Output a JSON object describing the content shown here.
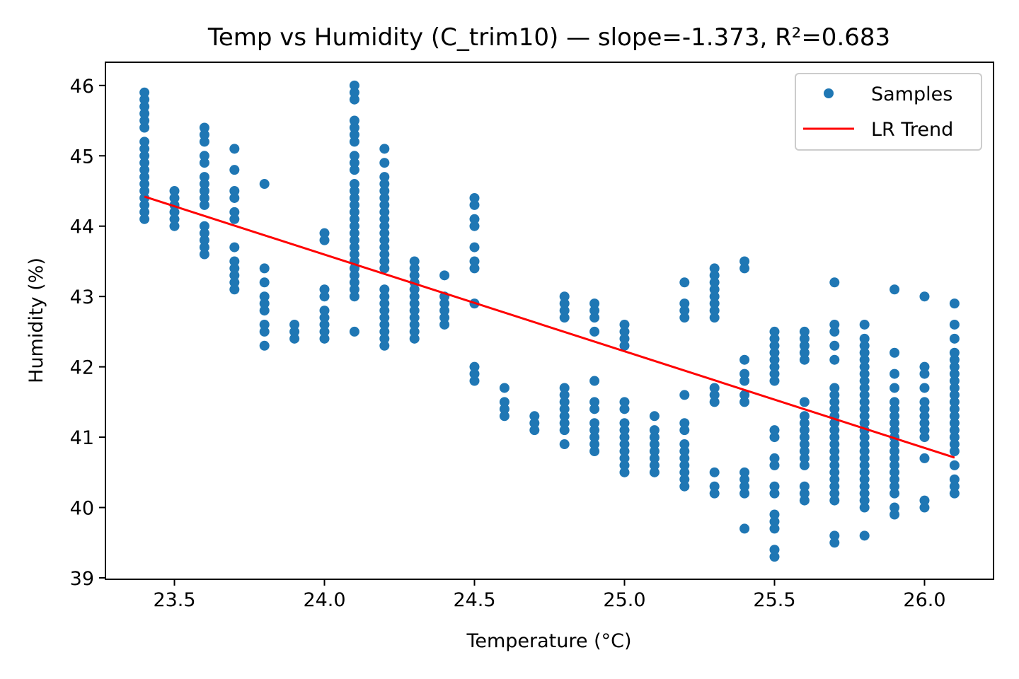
{
  "chart_data": {
    "type": "scatter",
    "title": "Temp vs Humidity (C_trim10) — slope=-1.373, R²=0.683",
    "xlabel": "Temperature (°C)",
    "ylabel": "Humidity (%)",
    "xlim": [
      23.27,
      26.23
    ],
    "ylim": [
      38.98,
      46.33
    ],
    "xticks": [
      23.5,
      24.0,
      24.5,
      25.0,
      25.5,
      26.0
    ],
    "xtick_labels": [
      "23.5",
      "24.0",
      "24.5",
      "25.0",
      "25.5",
      "26.0"
    ],
    "yticks": [
      39,
      40,
      41,
      42,
      43,
      44,
      45,
      46
    ],
    "ytick_labels": [
      "39",
      "40",
      "41",
      "42",
      "43",
      "44",
      "45",
      "46"
    ],
    "grid": false,
    "legend_position": "top-right",
    "series": [
      {
        "name": "Samples",
        "kind": "scatter",
        "color": "#1f77b4",
        "columns": [
          {
            "x": 23.4,
            "y": [
              44.1,
              44.2,
              44.3,
              44.4,
              44.5,
              44.6,
              44.7,
              44.8,
              44.9,
              45.0,
              45.1,
              45.2,
              45.4,
              45.5,
              45.6,
              45.7,
              45.8,
              45.9
            ]
          },
          {
            "x": 23.5,
            "y": [
              44.0,
              44.1,
              44.2,
              44.3,
              44.4,
              44.5
            ]
          },
          {
            "x": 23.6,
            "y": [
              43.6,
              43.7,
              43.8,
              43.9,
              44.0,
              44.3,
              44.4,
              44.5,
              44.6,
              44.7,
              44.9,
              45.0,
              45.2,
              45.3,
              45.4
            ]
          },
          {
            "x": 23.7,
            "y": [
              43.1,
              43.2,
              43.3,
              43.4,
              43.5,
              43.7,
              44.1,
              44.2,
              44.4,
              44.5,
              44.8,
              45.1
            ]
          },
          {
            "x": 23.8,
            "y": [
              42.3,
              42.5,
              42.6,
              42.8,
              42.9,
              43.0,
              43.2,
              43.4,
              44.6
            ]
          },
          {
            "x": 23.9,
            "y": [
              42.4,
              42.5,
              42.6
            ]
          },
          {
            "x": 24.0,
            "y": [
              42.4,
              42.5,
              42.6,
              42.7,
              42.8,
              43.0,
              43.1,
              43.8,
              43.9
            ]
          },
          {
            "x": 24.1,
            "y": [
              42.5,
              43.0,
              43.1,
              43.2,
              43.3,
              43.4,
              43.5,
              43.6,
              43.7,
              43.8,
              43.9,
              44.0,
              44.1,
              44.2,
              44.3,
              44.4,
              44.5,
              44.6,
              44.8,
              44.9,
              45.0,
              45.2,
              45.3,
              45.4,
              45.5,
              45.8,
              45.9,
              46.0
            ]
          },
          {
            "x": 24.2,
            "y": [
              42.3,
              42.4,
              42.5,
              42.6,
              42.7,
              42.8,
              42.9,
              43.0,
              43.1,
              43.4,
              43.5,
              43.6,
              43.7,
              43.8,
              43.9,
              44.0,
              44.1,
              44.2,
              44.3,
              44.4,
              44.5,
              44.6,
              44.7,
              44.9,
              45.1
            ]
          },
          {
            "x": 24.3,
            "y": [
              42.4,
              42.5,
              42.6,
              42.7,
              42.8,
              42.9,
              43.0,
              43.1,
              43.2,
              43.3,
              43.4,
              43.5
            ]
          },
          {
            "x": 24.4,
            "y": [
              42.6,
              42.7,
              42.8,
              42.9,
              43.0,
              43.3
            ]
          },
          {
            "x": 24.5,
            "y": [
              41.8,
              41.9,
              42.0,
              42.9,
              43.4,
              43.5,
              43.7,
              44.0,
              44.1,
              44.3,
              44.4
            ]
          },
          {
            "x": 24.6,
            "y": [
              41.3,
              41.4,
              41.5,
              41.7
            ]
          },
          {
            "x": 24.7,
            "y": [
              41.1,
              41.2,
              41.3
            ]
          },
          {
            "x": 24.8,
            "y": [
              40.9,
              41.1,
              41.2,
              41.3,
              41.4,
              41.5,
              41.6,
              41.7,
              42.7,
              42.8,
              42.9,
              43.0
            ]
          },
          {
            "x": 24.9,
            "y": [
              40.8,
              40.9,
              41.0,
              41.1,
              41.2,
              41.4,
              41.5,
              41.8,
              42.5,
              42.7,
              42.8,
              42.9
            ]
          },
          {
            "x": 25.0,
            "y": [
              40.5,
              40.6,
              40.7,
              40.8,
              40.9,
              41.0,
              41.1,
              41.2,
              41.4,
              41.5,
              42.3,
              42.4,
              42.5,
              42.6
            ]
          },
          {
            "x": 25.1,
            "y": [
              40.5,
              40.6,
              40.7,
              40.8,
              40.9,
              41.0,
              41.1,
              41.3
            ]
          },
          {
            "x": 25.2,
            "y": [
              40.3,
              40.4,
              40.5,
              40.6,
              40.7,
              40.8,
              40.9,
              41.1,
              41.2,
              41.6,
              42.7,
              42.8,
              42.9,
              43.2
            ]
          },
          {
            "x": 25.3,
            "y": [
              40.2,
              40.3,
              40.5,
              41.5,
              41.6,
              41.7,
              42.7,
              42.8,
              42.9,
              43.0,
              43.1,
              43.2,
              43.3,
              43.4
            ]
          },
          {
            "x": 25.4,
            "y": [
              39.7,
              40.2,
              40.3,
              40.4,
              40.5,
              41.5,
              41.6,
              41.8,
              41.9,
              42.1,
              43.4,
              43.5
            ]
          },
          {
            "x": 25.5,
            "y": [
              39.3,
              39.4,
              39.7,
              39.8,
              39.9,
              40.2,
              40.3,
              40.6,
              40.7,
              41.0,
              41.1,
              41.8,
              41.9,
              42.0,
              42.1,
              42.2,
              42.3,
              42.4,
              42.5
            ]
          },
          {
            "x": 25.6,
            "y": [
              40.1,
              40.2,
              40.3,
              40.6,
              40.7,
              40.8,
              40.9,
              41.0,
              41.1,
              41.2,
              41.3,
              41.5,
              42.1,
              42.2,
              42.3,
              42.4,
              42.5
            ]
          },
          {
            "x": 25.7,
            "y": [
              39.5,
              39.6,
              40.1,
              40.2,
              40.3,
              40.4,
              40.5,
              40.6,
              40.7,
              40.8,
              40.9,
              41.0,
              41.1,
              41.2,
              41.3,
              41.4,
              41.5,
              41.6,
              41.7,
              42.1,
              42.3,
              42.5,
              42.6,
              43.2
            ]
          },
          {
            "x": 25.8,
            "y": [
              39.6,
              40.0,
              40.1,
              40.2,
              40.3,
              40.4,
              40.5,
              40.6,
              40.7,
              40.8,
              40.9,
              41.0,
              41.1,
              41.2,
              41.3,
              41.4,
              41.5,
              41.6,
              41.7,
              41.8,
              41.9,
              42.0,
              42.1,
              42.2,
              42.3,
              42.4,
              42.6
            ]
          },
          {
            "x": 25.9,
            "y": [
              39.9,
              40.0,
              40.2,
              40.3,
              40.4,
              40.5,
              40.6,
              40.7,
              40.8,
              40.9,
              41.0,
              41.1,
              41.2,
              41.3,
              41.4,
              41.5,
              41.7,
              41.9,
              42.2,
              43.1
            ]
          },
          {
            "x": 26.0,
            "y": [
              40.0,
              40.1,
              40.7,
              41.0,
              41.1,
              41.2,
              41.3,
              41.4,
              41.5,
              41.7,
              41.9,
              42.0,
              43.0
            ]
          },
          {
            "x": 26.1,
            "y": [
              40.2,
              40.3,
              40.4,
              40.6,
              40.8,
              40.9,
              41.0,
              41.1,
              41.2,
              41.3,
              41.4,
              41.5,
              41.6,
              41.7,
              41.8,
              41.9,
              42.0,
              42.1,
              42.2,
              42.4,
              42.6,
              42.9
            ]
          }
        ]
      },
      {
        "name": "LR Trend",
        "kind": "line",
        "color": "#ff0000",
        "x": [
          23.4,
          26.1
        ],
        "y": [
          44.42,
          40.71
        ]
      }
    ],
    "legend": [
      "Samples",
      "LR Trend"
    ]
  }
}
